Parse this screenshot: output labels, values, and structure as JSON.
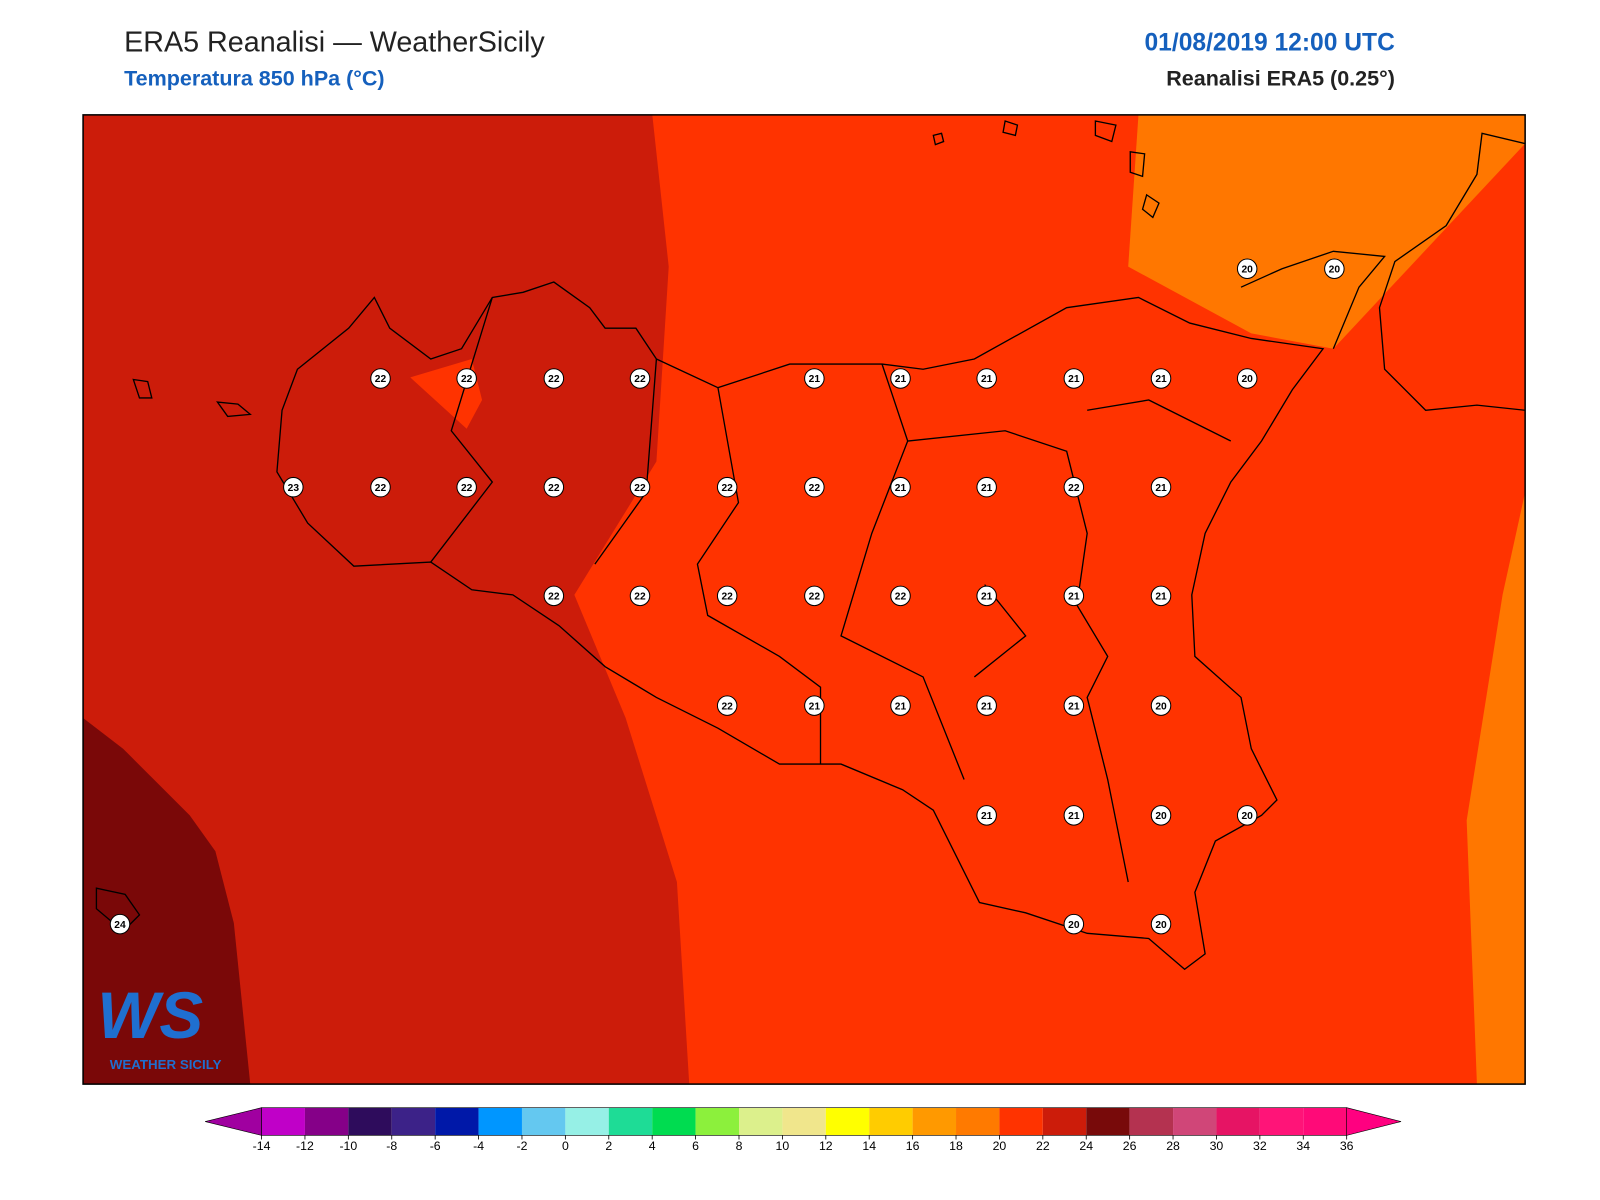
{
  "header": {
    "title": "ERA5 Reanalisi — WeatherSicily",
    "subtitle": "Temperatura 850 hPa (°C)",
    "datetime": "01/08/2019 12:00 UTC",
    "source": "Reanalisi ERA5 (0.25°)"
  },
  "stations": [
    20,
    20,
    22,
    22,
    22,
    22,
    21,
    21,
    21,
    21,
    21,
    20,
    23,
    22,
    22,
    22,
    22,
    22,
    22,
    21,
    21,
    22,
    21,
    22,
    22,
    22,
    22,
    22,
    21,
    21,
    21,
    22,
    21,
    21,
    21,
    21,
    20,
    21,
    21,
    20,
    20,
    24,
    20,
    20
  ],
  "colorbar": {
    "ticks": [
      -14,
      -12,
      -10,
      -8,
      -6,
      -4,
      -2,
      0,
      2,
      4,
      6,
      8,
      10,
      12,
      14,
      16,
      18,
      20,
      22,
      24,
      26,
      28,
      30,
      32,
      34,
      36
    ],
    "colors": [
      "#c000c8",
      "#850088",
      "#2e0c5c",
      "#3c2288",
      "#0018a8",
      "#0096ff",
      "#64c8f0",
      "#96f0e6",
      "#1edc96",
      "#00dc50",
      "#8cf03c",
      "#dcf08c",
      "#f0e68c",
      "#ffff00",
      "#ffcc00",
      "#ff9900",
      "#ff7a00",
      "#ff3300",
      "#cc1c0a",
      "#780a0a",
      "#b43250",
      "#d04678",
      "#e61464",
      "#ff1478",
      "#ff0a78"
    ],
    "under": "#a000a0",
    "over": "#ff0080"
  },
  "logo": {
    "mark": "WS",
    "text": "WEATHER SICILY"
  }
}
